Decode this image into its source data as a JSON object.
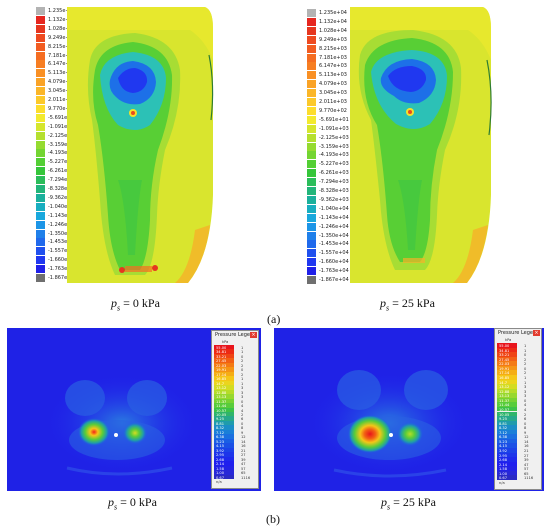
{
  "legend_values": [
    "1.235e+04",
    "1.132e+04",
    "1.028e+04",
    "9.249e+03",
    "8.215e+03",
    "7.181e+03",
    "6.147e+03",
    "5.113e+03",
    "4.079e+03",
    "3.045e+03",
    "2.011e+03",
    "9.770e+02",
    "-5.691e+01",
    "-1.091e+03",
    "-2.125e+03",
    "-3.159e+03",
    "-4.193e+03",
    "-5.227e+03",
    "-6.261e+03",
    "-7.294e+03",
    "-8.328e+03",
    "-9.362e+03",
    "-1.040e+04",
    "-1.143e+04",
    "-1.246e+04",
    "-1.350e+04",
    "-1.453e+04",
    "-1.557e+04",
    "-1.660e+04",
    "-1.763e+04",
    "-1.867e+04"
  ],
  "legend_colors": [
    "#b3b3b3",
    "#e6261f",
    "#e6361f",
    "#ee4a20",
    "#f25c21",
    "#f56d22",
    "#f77e22",
    "#f99024",
    "#faa326",
    "#fbb628",
    "#fcc92a",
    "#fddd2c",
    "#f3ea2e",
    "#d5e62e",
    "#b5e02f",
    "#95db30",
    "#74d532",
    "#53cf34",
    "#35c63a",
    "#2bbd5a",
    "#22b57a",
    "#1bb09c",
    "#18aec0",
    "#19a8dd",
    "#1c95e7",
    "#1f80ea",
    "#2069ec",
    "#2050ee",
    "#2038f0",
    "#2020e8",
    "#6f6f6f"
  ],
  "captions": {
    "top_left": "p",
    "top_left_sub": "s",
    "top_left_rest": " = 0 kPa",
    "top_right": "p",
    "top_right_sub": "s",
    "top_right_rest": " = 25 kPa",
    "bottom_left": "p",
    "bottom_left_sub": "s",
    "bottom_left_rest": " = 0 kPa",
    "bottom_right": "p",
    "bottom_right_sub": "s",
    "bottom_right_rest": " = 25 kPa",
    "label_a": "(a)",
    "label_b": "(b)"
  },
  "pressure_legend": {
    "title": "Pressure Legend",
    "close": "×",
    "unit": "kPa",
    "values_left": [
      "55.00",
      "34.81",
      "33.21",
      "27.45",
      "22.03",
      "19.91",
      "17.14",
      "16.85",
      "14.7",
      "13.12",
      "12.88",
      "13.13",
      "11.37",
      "11.44",
      "10.57",
      "10.05",
      "9.25",
      "8.81",
      "8.32",
      "7.12",
      "6.38",
      "5.23",
      "4.15",
      "3.92",
      "2.95",
      "2.68",
      "2.14",
      "1.58",
      "1.00",
      "0.67"
    ],
    "values_right": [
      "1",
      "1",
      "0",
      "2",
      "2",
      "0",
      "2",
      "1",
      "1",
      "3",
      "3",
      "3",
      "0",
      "4",
      "4",
      "2",
      "6",
      "0",
      "8",
      "9",
      "12",
      "14",
      "16",
      "21",
      "27",
      "39",
      "47",
      "57",
      "65",
      "1116"
    ],
    "footer": "n/a",
    "colors": [
      "#e8141c",
      "#ec2a14",
      "#ef4414",
      "#f26014",
      "#f47a14",
      "#f59414",
      "#f5ad15",
      "#f5c618",
      "#ecd51d",
      "#d4dc22",
      "#b6dc28",
      "#97d82e",
      "#77d233",
      "#58cc3a",
      "#3cc249",
      "#2fb56a",
      "#27a98b",
      "#1f9cab",
      "#1b8ec6",
      "#1a7fd8",
      "#1a6fe0",
      "#1a5fe4",
      "#1b50e6",
      "#1c42e8",
      "#1d35ea",
      "#1e29ec",
      "#1f1fee",
      "#2222e6",
      "#2727d8",
      "#2a2ac4"
    ]
  }
}
